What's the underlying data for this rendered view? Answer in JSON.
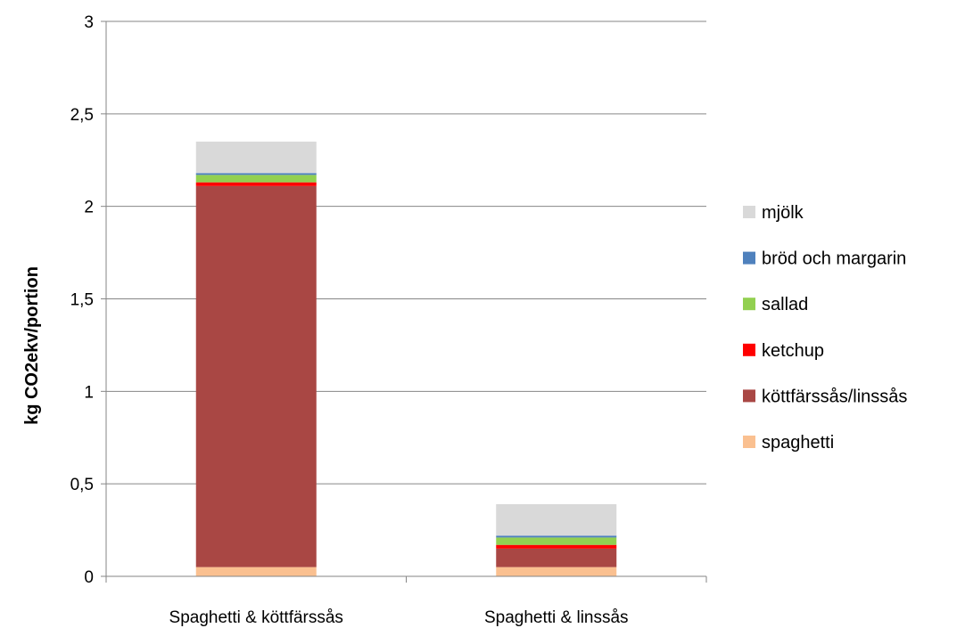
{
  "chart_data": {
    "type": "bar",
    "stacked": true,
    "title": "",
    "xlabel": "",
    "ylabel": "kg CO2ekv/portion",
    "ylim": [
      0,
      3
    ],
    "yticks": [
      "0",
      "0,5",
      "1",
      "1,5",
      "2",
      "2,5",
      "3"
    ],
    "ytick_values": [
      0,
      0.5,
      1,
      1.5,
      2,
      2.5,
      3
    ],
    "grid": true,
    "legend_position": "right",
    "categories": [
      "Spaghetti & köttfärssås",
      "Spaghetti & linssås"
    ],
    "series": [
      {
        "name": "spaghetti",
        "color": "#FAC090",
        "values": [
          0.05,
          0.05
        ]
      },
      {
        "name": "köttfärssås/linssås",
        "color": "#A94744",
        "values": [
          2.06,
          0.1
        ]
      },
      {
        "name": "ketchup",
        "color": "#FF0000",
        "values": [
          0.02,
          0.02
        ]
      },
      {
        "name": "sallad",
        "color": "#92D050",
        "values": [
          0.04,
          0.04
        ]
      },
      {
        "name": "bröd och margarin",
        "color": "#4F81BD",
        "values": [
          0.01,
          0.01
        ]
      },
      {
        "name": "mjölk",
        "color": "#D9D9D9",
        "values": [
          0.17,
          0.17
        ]
      }
    ]
  }
}
